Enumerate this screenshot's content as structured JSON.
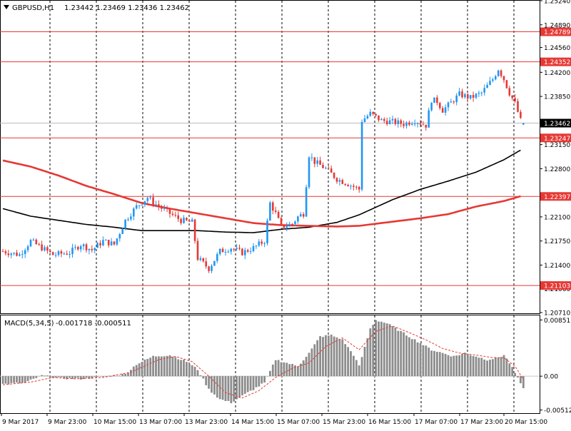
{
  "header": {
    "triangle_icon": "triangle-down-icon",
    "symbol_label": "GBPUSD,H1",
    "ohlc": "1.23442 1.23469 1.23436 1.23462"
  },
  "macd": {
    "label": "MACD(5,34,5)",
    "values_text": "-0.001718 -0.000511"
  },
  "colors": {
    "bull": "#2196F3",
    "bear": "#E53935",
    "ma_slow": "#000000",
    "ma_fast": "#E53935",
    "level_line": "#E53935",
    "macd_hist": "#8C8C8C",
    "macd_signal": "#E53935",
    "grid": "#000000",
    "current_price_bg": "#000000"
  },
  "chart_data": [
    {
      "type": "candlestick",
      "symbol": "GBPUSD",
      "timeframe": "H1",
      "ylim": [
        1.207,
        1.2524
      ],
      "y_ticks": [
        "1.25240",
        "1.24890",
        "1.24560",
        "1.24200",
        "1.23850",
        "1.23150",
        "1.22800",
        "1.22100",
        "1.21750",
        "1.21400",
        "1.21060",
        "1.20710"
      ],
      "x_labels": [
        "9 Mar 2017",
        "9 Mar 23:00",
        "10 Mar 15:00",
        "13 Mar 07:00",
        "13 Mar 23:00",
        "14 Mar 15:00",
        "15 Mar 07:00",
        "15 Mar 23:00",
        "16 Mar 15:00",
        "17 Mar 07:00",
        "17 Mar 23:00",
        "20 Mar 15:00"
      ],
      "current_price": "1.23462",
      "horizontal_levels": [
        "1.24789",
        "1.24352",
        "1.23247",
        "1.22397",
        "1.21103"
      ],
      "waypoints": [
        [
          0,
          1.216
        ],
        [
          6,
          1.2155
        ],
        [
          10,
          1.2175
        ],
        [
          14,
          1.2165
        ],
        [
          18,
          1.2155
        ],
        [
          24,
          1.2158
        ],
        [
          28,
          1.217
        ],
        [
          32,
          1.2162
        ],
        [
          36,
          1.2175
        ],
        [
          40,
          1.217
        ],
        [
          44,
          1.2205
        ],
        [
          48,
          1.2225
        ],
        [
          52,
          1.2238
        ],
        [
          56,
          1.2225
        ],
        [
          60,
          1.2215
        ],
        [
          64,
          1.2205
        ],
        [
          68,
          1.2202
        ],
        [
          70,
          1.215
        ],
        [
          74,
          1.2135
        ],
        [
          78,
          1.216
        ],
        [
          82,
          1.2165
        ],
        [
          86,
          1.2158
        ],
        [
          90,
          1.2165
        ],
        [
          94,
          1.2175
        ],
        [
          96,
          1.223
        ],
        [
          98,
          1.2215
        ],
        [
          100,
          1.2195
        ],
        [
          104,
          1.22
        ],
        [
          106,
          1.221
        ],
        [
          108,
          1.2215
        ],
        [
          110,
          1.23
        ],
        [
          112,
          1.229
        ],
        [
          116,
          1.228
        ],
        [
          120,
          1.2265
        ],
        [
          124,
          1.2258
        ],
        [
          128,
          1.225
        ],
        [
          129,
          1.235
        ],
        [
          132,
          1.236
        ],
        [
          136,
          1.235
        ],
        [
          140,
          1.2348
        ],
        [
          144,
          1.2345
        ],
        [
          148,
          1.235
        ],
        [
          152,
          1.2343
        ],
        [
          154,
          1.238
        ],
        [
          156,
          1.2378
        ],
        [
          158,
          1.2365
        ],
        [
          160,
          1.2372
        ],
        [
          164,
          1.2388
        ],
        [
          168,
          1.2383
        ],
        [
          172,
          1.239
        ],
        [
          176,
          1.241
        ],
        [
          178,
          1.2425
        ],
        [
          180,
          1.241
        ],
        [
          182,
          1.239
        ],
        [
          184,
          1.2375
        ],
        [
          186,
          1.235
        ],
        [
          187,
          1.2346
        ]
      ],
      "series": [
        {
          "type": "line",
          "points": [
            [
              0,
              1.2222
            ],
            [
              10,
              1.2211
            ],
            [
              20,
              1.2205
            ],
            [
              30,
              1.2199
            ],
            [
              40,
              1.2195
            ],
            [
              50,
              1.219
            ],
            [
              60,
              1.219
            ],
            [
              70,
              1.219
            ],
            [
              80,
              1.2188
            ],
            [
              90,
              1.2187
            ],
            [
              100,
              1.2192
            ],
            [
              110,
              1.2195
            ],
            [
              120,
              1.2202
            ],
            [
              128,
              1.2213
            ],
            [
              140,
              1.2235
            ],
            [
              150,
              1.225
            ],
            [
              160,
              1.2262
            ],
            [
              170,
              1.2275
            ],
            [
              180,
              1.2293
            ],
            [
              186,
              1.2307
            ]
          ]
        },
        {
          "type": "line",
          "points": [
            [
              0,
              1.2292
            ],
            [
              10,
              1.2283
            ],
            [
              20,
              1.227
            ],
            [
              30,
              1.2255
            ],
            [
              40,
              1.2243
            ],
            [
              50,
              1.223
            ],
            [
              60,
              1.2222
            ],
            [
              70,
              1.2215
            ],
            [
              80,
              1.2208
            ],
            [
              90,
              1.2201
            ],
            [
              100,
              1.2198
            ],
            [
              110,
              1.2197
            ],
            [
              120,
              1.2196
            ],
            [
              128,
              1.2197
            ],
            [
              140,
              1.2203
            ],
            [
              150,
              1.2208
            ],
            [
              160,
              1.2214
            ],
            [
              170,
              1.2225
            ],
            [
              180,
              1.2233
            ],
            [
              186,
              1.224
            ]
          ]
        }
      ]
    },
    {
      "type": "histogram",
      "title": "MACD(5,34,5)",
      "ylim": [
        -0.0056,
        0.0092
      ],
      "y_ticks": [
        "0.008511",
        "0.00",
        "-0.005125"
      ],
      "hist_waypoints": [
        [
          0,
          -0.0012
        ],
        [
          8,
          -0.001
        ],
        [
          14,
          0.0001
        ],
        [
          20,
          -0.0003
        ],
        [
          28,
          -0.0004
        ],
        [
          36,
          -0.0001
        ],
        [
          44,
          0.0003
        ],
        [
          48,
          0.0018
        ],
        [
          54,
          0.003
        ],
        [
          60,
          0.0032
        ],
        [
          66,
          0.0022
        ],
        [
          70,
          0.001
        ],
        [
          74,
          -0.002
        ],
        [
          78,
          -0.0035
        ],
        [
          82,
          -0.004
        ],
        [
          86,
          -0.003
        ],
        [
          90,
          -0.002
        ],
        [
          94,
          -0.001
        ],
        [
          98,
          0.0025
        ],
        [
          102,
          0.002
        ],
        [
          106,
          0.0015
        ],
        [
          110,
          0.0035
        ],
        [
          114,
          0.006
        ],
        [
          118,
          0.0062
        ],
        [
          122,
          0.0055
        ],
        [
          126,
          0.0032
        ],
        [
          128,
          0.0015
        ],
        [
          132,
          0.0072
        ],
        [
          134,
          0.0085
        ],
        [
          138,
          0.008
        ],
        [
          142,
          0.007
        ],
        [
          146,
          0.006
        ],
        [
          150,
          0.005
        ],
        [
          154,
          0.004
        ],
        [
          158,
          0.0035
        ],
        [
          162,
          0.003
        ],
        [
          166,
          0.0035
        ],
        [
          170,
          0.003
        ],
        [
          174,
          0.0025
        ],
        [
          178,
          0.0028
        ],
        [
          180,
          0.0032
        ],
        [
          182,
          0.002
        ],
        [
          184,
          0.0005
        ],
        [
          186,
          -0.0012
        ],
        [
          187,
          -0.0017
        ]
      ],
      "signal_points": [
        [
          0,
          -0.0013
        ],
        [
          10,
          -0.0009
        ],
        [
          18,
          -0.0002
        ],
        [
          26,
          -0.0004
        ],
        [
          36,
          -0.0002
        ],
        [
          46,
          0.0006
        ],
        [
          56,
          0.0025
        ],
        [
          62,
          0.003
        ],
        [
          68,
          0.0022
        ],
        [
          74,
          0.0
        ],
        [
          80,
          -0.0025
        ],
        [
          86,
          -0.0033
        ],
        [
          92,
          -0.0022
        ],
        [
          98,
          -0.0002
        ],
        [
          104,
          0.0012
        ],
        [
          110,
          0.002
        ],
        [
          116,
          0.0045
        ],
        [
          122,
          0.0058
        ],
        [
          128,
          0.004
        ],
        [
          134,
          0.0068
        ],
        [
          140,
          0.0076
        ],
        [
          146,
          0.0066
        ],
        [
          152,
          0.0055
        ],
        [
          158,
          0.0042
        ],
        [
          164,
          0.0035
        ],
        [
          170,
          0.0032
        ],
        [
          176,
          0.0028
        ],
        [
          180,
          0.0028
        ],
        [
          184,
          0.0015
        ],
        [
          187,
          -0.0005
        ]
      ]
    }
  ]
}
